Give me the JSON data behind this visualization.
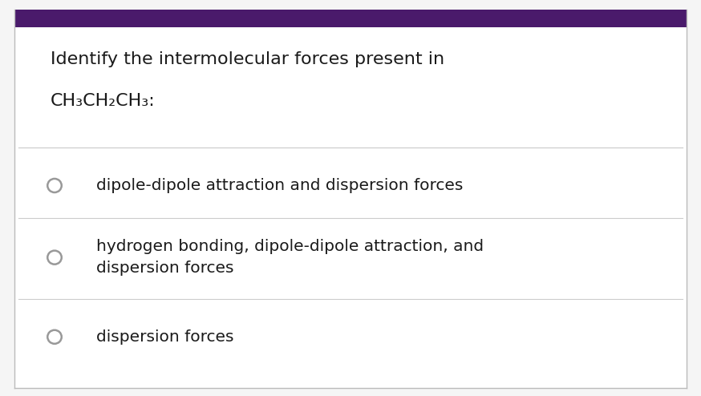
{
  "title_line1": "Identify the intermolecular forces present in",
  "title_line2": "CH₃CH₂CH₃:",
  "options": [
    "dipole-dipole attraction and dispersion forces",
    "hydrogen bonding, dipole-dipole attraction, and\ndispersion forces",
    "dispersion forces"
  ],
  "bg_color": "#f5f5f5",
  "content_bg": "#ffffff",
  "border_top_color": "#4a1a6b",
  "border_side_color": "#bbbbbb",
  "text_color": "#1a1a1a",
  "circle_color": "#999999",
  "line_color": "#cccccc",
  "title_fontsize": 16,
  "option_fontsize": 14.5,
  "fig_width": 8.74,
  "fig_height": 4.94
}
